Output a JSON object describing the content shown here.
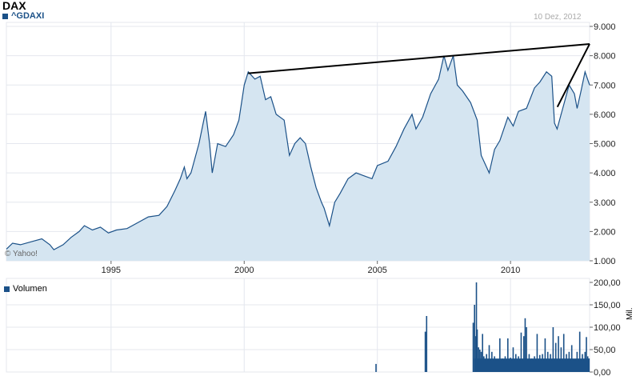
{
  "header": {
    "title": "DAX",
    "symbol": "^GDAXI",
    "date": "10 Dez, 2012",
    "watermark": "© Yahoo!"
  },
  "colors": {
    "series": "#1b5188",
    "fill": "#d5e5f1",
    "grid": "#e4e7ee",
    "trendline": "#000000",
    "date": "#aaaaaa"
  },
  "chart_data": [
    {
      "type": "area",
      "name": "^GDAXI",
      "xlim": [
        1991.07,
        2012.97
      ],
      "ylim": [
        1000,
        9000
      ],
      "x_ticks": [
        "1995",
        "2000",
        "2005",
        "2010"
      ],
      "x_tick_values": [
        1995,
        2000,
        2005,
        2010
      ],
      "y_ticks": [
        "9.000",
        "8.000",
        "7.000",
        "6.000",
        "5.000",
        "4.000",
        "3.000",
        "2.000",
        "1.000"
      ],
      "y_tick_values": [
        9000,
        8000,
        7000,
        6000,
        5000,
        4000,
        3000,
        2000,
        1000
      ],
      "grid": true,
      "points": [
        [
          1991.07,
          1400
        ],
        [
          1991.3,
          1600
        ],
        [
          1991.6,
          1550
        ],
        [
          1992.0,
          1650
        ],
        [
          1992.4,
          1750
        ],
        [
          1992.7,
          1550
        ],
        [
          1992.85,
          1380
        ],
        [
          1993.2,
          1550
        ],
        [
          1993.5,
          1800
        ],
        [
          1993.8,
          2000
        ],
        [
          1994.0,
          2200
        ],
        [
          1994.3,
          2050
        ],
        [
          1994.6,
          2150
        ],
        [
          1994.9,
          1950
        ],
        [
          1995.2,
          2050
        ],
        [
          1995.6,
          2100
        ],
        [
          1996.0,
          2300
        ],
        [
          1996.4,
          2500
        ],
        [
          1996.8,
          2550
        ],
        [
          1997.1,
          2850
        ],
        [
          1997.4,
          3400
        ],
        [
          1997.6,
          3800
        ],
        [
          1997.75,
          4200
        ],
        [
          1997.85,
          3800
        ],
        [
          1998.0,
          4000
        ],
        [
          1998.3,
          5000
        ],
        [
          1998.55,
          6100
        ],
        [
          1998.7,
          5000
        ],
        [
          1998.8,
          4000
        ],
        [
          1999.0,
          5000
        ],
        [
          1999.3,
          4900
        ],
        [
          1999.6,
          5300
        ],
        [
          1999.8,
          5800
        ],
        [
          2000.0,
          7000
        ],
        [
          2000.15,
          7450
        ],
        [
          2000.4,
          7200
        ],
        [
          2000.6,
          7300
        ],
        [
          2000.8,
          6500
        ],
        [
          2001.0,
          6600
        ],
        [
          2001.2,
          6000
        ],
        [
          2001.5,
          5800
        ],
        [
          2001.7,
          4600
        ],
        [
          2001.9,
          5000
        ],
        [
          2002.1,
          5200
        ],
        [
          2002.3,
          5000
        ],
        [
          2002.5,
          4200
        ],
        [
          2002.7,
          3500
        ],
        [
          2002.9,
          3000
        ],
        [
          2003.0,
          2800
        ],
        [
          2003.2,
          2200
        ],
        [
          2003.4,
          3000
        ],
        [
          2003.6,
          3300
        ],
        [
          2003.9,
          3800
        ],
        [
          2004.2,
          4000
        ],
        [
          2004.5,
          3900
        ],
        [
          2004.8,
          3800
        ],
        [
          2005.0,
          4250
        ],
        [
          2005.4,
          4400
        ],
        [
          2005.7,
          4900
        ],
        [
          2006.0,
          5500
        ],
        [
          2006.3,
          6000
        ],
        [
          2006.45,
          5500
        ],
        [
          2006.7,
          5900
        ],
        [
          2007.0,
          6700
        ],
        [
          2007.3,
          7200
        ],
        [
          2007.5,
          8000
        ],
        [
          2007.65,
          7500
        ],
        [
          2007.85,
          8000
        ],
        [
          2008.0,
          7000
        ],
        [
          2008.2,
          6800
        ],
        [
          2008.5,
          6400
        ],
        [
          2008.75,
          5800
        ],
        [
          2008.9,
          4600
        ],
        [
          2009.2,
          4000
        ],
        [
          2009.4,
          4800
        ],
        [
          2009.6,
          5100
        ],
        [
          2009.9,
          5900
        ],
        [
          2010.1,
          5600
        ],
        [
          2010.3,
          6100
        ],
        [
          2010.6,
          6200
        ],
        [
          2010.9,
          6900
        ],
        [
          2011.1,
          7100
        ],
        [
          2011.35,
          7450
        ],
        [
          2011.55,
          7300
        ],
        [
          2011.65,
          5700
        ],
        [
          2011.75,
          5500
        ],
        [
          2011.9,
          6000
        ],
        [
          2012.2,
          7000
        ],
        [
          2012.4,
          6700
        ],
        [
          2012.5,
          6200
        ],
        [
          2012.65,
          6800
        ],
        [
          2012.8,
          7450
        ],
        [
          2012.97,
          7000
        ]
      ],
      "trendlines": [
        {
          "from": [
            2000.15,
            7400
          ],
          "to": [
            2012.97,
            8400
          ]
        },
        {
          "from": [
            2011.76,
            6250
          ],
          "to": [
            2012.97,
            8400
          ]
        }
      ]
    },
    {
      "type": "bar",
      "name": "Volumen",
      "ylabel": "Mil.",
      "xlim": [
        1991.07,
        2012.97
      ],
      "ylim": [
        0,
        200
      ],
      "y_ticks": [
        "200,00",
        "150,00",
        "100,00",
        "50,00",
        "0,00"
      ],
      "y_tick_values": [
        200,
        150,
        100,
        50,
        0
      ],
      "points": [
        [
          2004.95,
          18
        ],
        [
          2006.8,
          90
        ],
        [
          2006.85,
          125
        ],
        [
          2008.6,
          110
        ],
        [
          2008.65,
          150
        ],
        [
          2008.7,
          80
        ],
        [
          2008.72,
          200
        ],
        [
          2008.75,
          95
        ],
        [
          2008.8,
          55
        ],
        [
          2008.85,
          50
        ],
        [
          2008.9,
          45
        ],
        [
          2008.95,
          85
        ],
        [
          2009.0,
          35
        ],
        [
          2009.1,
          40
        ],
        [
          2009.2,
          60
        ],
        [
          2009.3,
          45
        ],
        [
          2009.4,
          35
        ],
        [
          2009.5,
          28
        ],
        [
          2009.6,
          75
        ],
        [
          2009.7,
          30
        ],
        [
          2009.8,
          35
        ],
        [
          2009.9,
          75
        ],
        [
          2010.0,
          32
        ],
        [
          2010.1,
          55
        ],
        [
          2010.2,
          40
        ],
        [
          2010.3,
          35
        ],
        [
          2010.4,
          88
        ],
        [
          2010.5,
          80
        ],
        [
          2010.55,
          120
        ],
        [
          2010.6,
          100
        ],
        [
          2010.7,
          40
        ],
        [
          2010.8,
          30
        ],
        [
          2010.9,
          35
        ],
        [
          2011.0,
          85
        ],
        [
          2011.1,
          38
        ],
        [
          2011.2,
          40
        ],
        [
          2011.3,
          75
        ],
        [
          2011.4,
          45
        ],
        [
          2011.5,
          40
        ],
        [
          2011.6,
          100
        ],
        [
          2011.7,
          65
        ],
        [
          2011.8,
          80
        ],
        [
          2011.9,
          55
        ],
        [
          2012.0,
          85
        ],
        [
          2012.1,
          40
        ],
        [
          2012.2,
          45
        ],
        [
          2012.3,
          60
        ],
        [
          2012.4,
          13
        ],
        [
          2012.5,
          45
        ],
        [
          2012.6,
          90
        ],
        [
          2012.7,
          40
        ],
        [
          2012.8,
          45
        ],
        [
          2012.85,
          78
        ],
        [
          2012.9,
          35
        ],
        [
          2012.95,
          30
        ]
      ]
    }
  ]
}
